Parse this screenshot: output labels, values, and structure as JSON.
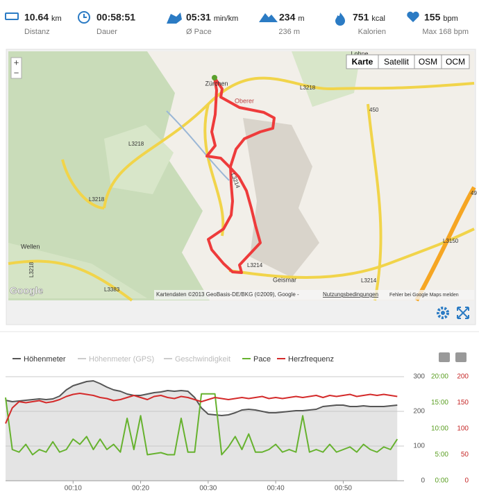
{
  "stats": [
    {
      "value": "10.64",
      "unit": "km",
      "label": "Distanz"
    },
    {
      "value": "00:58:51",
      "label": "Dauer"
    },
    {
      "value": "05:31",
      "unit": "min/km",
      "label": "Ø Pace"
    },
    {
      "value": "234",
      "unit": "m",
      "label": "236 m"
    },
    {
      "value": "751",
      "unit": "kcal",
      "label": "Kalorien"
    },
    {
      "value": "155",
      "unit": "bpm",
      "label": "Max 168 bpm"
    }
  ],
  "map": {
    "map_types": [
      "Karte",
      "Satellit",
      "OSM",
      "OCM"
    ],
    "places": [
      "Zürchen",
      "Wellen",
      "Geismar",
      "Lohne",
      "Oberer"
    ],
    "roads": [
      "L3218",
      "L3218",
      "L3218",
      "L3214",
      "L3214",
      "L3214",
      "L3383",
      "L3150",
      "450",
      "49",
      "L3218"
    ],
    "logo": "Google",
    "attribution": "Kartendaten ©2013 GeoBasis-DE/BKG (©2009), Google -",
    "terms": "Nutzungsbedingungen",
    "report": "Fehler bei Google Maps melden"
  },
  "chart_data": {
    "type": "line",
    "x": [
      0,
      1,
      2,
      3,
      4,
      5,
      6,
      7,
      8,
      9,
      10,
      11,
      12,
      13,
      14,
      15,
      16,
      17,
      18,
      19,
      20,
      21,
      22,
      23,
      24,
      25,
      26,
      27,
      28,
      29,
      30,
      31,
      32,
      33,
      34,
      35,
      36,
      37,
      38,
      39,
      40,
      41,
      42,
      43,
      44,
      45,
      46,
      47,
      48,
      49,
      50,
      51,
      52,
      53,
      54,
      55,
      56,
      57,
      58
    ],
    "xlim": [
      0,
      59
    ],
    "xticks": [
      {
        "value": 10,
        "label": "00:10"
      },
      {
        "value": 20,
        "label": "00:20"
      },
      {
        "value": 30,
        "label": "00:30"
      },
      {
        "value": 40,
        "label": "00:40"
      },
      {
        "value": 50,
        "label": "00:50"
      }
    ],
    "ylim": [
      0,
      300
    ],
    "yticks": [
      0,
      100,
      200,
      300
    ],
    "y2lim": [
      0,
      20
    ],
    "y2ticks": [
      {
        "value": 0,
        "label": "0:00"
      },
      {
        "value": 5,
        "label": "5:00"
      },
      {
        "value": 10,
        "label": "10:00"
      },
      {
        "value": 15,
        "label": "15:00"
      },
      {
        "value": 20,
        "label": "20:00"
      }
    ],
    "y3lim": [
      0,
      200
    ],
    "y3ticks": [
      0,
      50,
      100,
      150,
      200
    ],
    "grid": true,
    "series": [
      {
        "name": "Höhenmeter",
        "color": "#555555",
        "axis": "y",
        "values": [
          232,
          228,
          230,
          232,
          234,
          236,
          234,
          236,
          244,
          262,
          274,
          280,
          286,
          288,
          280,
          270,
          262,
          258,
          250,
          246,
          246,
          250,
          254,
          256,
          260,
          258,
          260,
          258,
          240,
          210,
          192,
          190,
          188,
          190,
          196,
          204,
          206,
          204,
          200,
          196,
          196,
          198,
          200,
          202,
          202,
          204,
          206,
          214,
          216,
          218,
          218,
          214,
          214,
          216,
          214,
          214,
          214,
          216,
          218
        ]
      },
      {
        "name": "Höhenmeter (GPS)",
        "color": "#cccccc",
        "visible": false
      },
      {
        "name": "Geschwindigkeit",
        "color": "#cccccc",
        "visible": false
      },
      {
        "name": "Pace",
        "color": "#66b22e",
        "axis": "y2",
        "values": [
          16,
          6,
          5.5,
          7,
          5,
          6,
          5.5,
          7.5,
          5.5,
          6,
          8,
          7,
          8.5,
          6,
          8,
          6,
          7,
          5.5,
          12,
          6,
          12.5,
          5,
          5.2,
          5.4,
          5,
          5,
          12,
          5.5,
          5.5,
          16.7,
          16.7,
          16.7,
          5,
          6.5,
          8.5,
          6,
          9,
          5.5,
          5.5,
          6,
          7,
          5.5,
          6,
          5.5,
          12.5,
          5.5,
          6,
          5.5,
          7,
          5.5,
          6,
          6.5,
          5.5,
          7,
          6,
          5.5,
          6.5,
          6,
          8
        ]
      },
      {
        "name": "Herzfrequenz",
        "color": "#d42a2a",
        "axis": "y3",
        "values": [
          110,
          140,
          152,
          150,
          152,
          154,
          150,
          152,
          156,
          162,
          166,
          168,
          166,
          164,
          160,
          158,
          154,
          156,
          160,
          164,
          160,
          156,
          162,
          164,
          160,
          158,
          162,
          160,
          156,
          152,
          156,
          160,
          158,
          156,
          158,
          160,
          158,
          160,
          162,
          158,
          160,
          158,
          160,
          162,
          160,
          162,
          164,
          160,
          164,
          162,
          164,
          166,
          162,
          164,
          166,
          164,
          166,
          164,
          162
        ]
      }
    ]
  }
}
